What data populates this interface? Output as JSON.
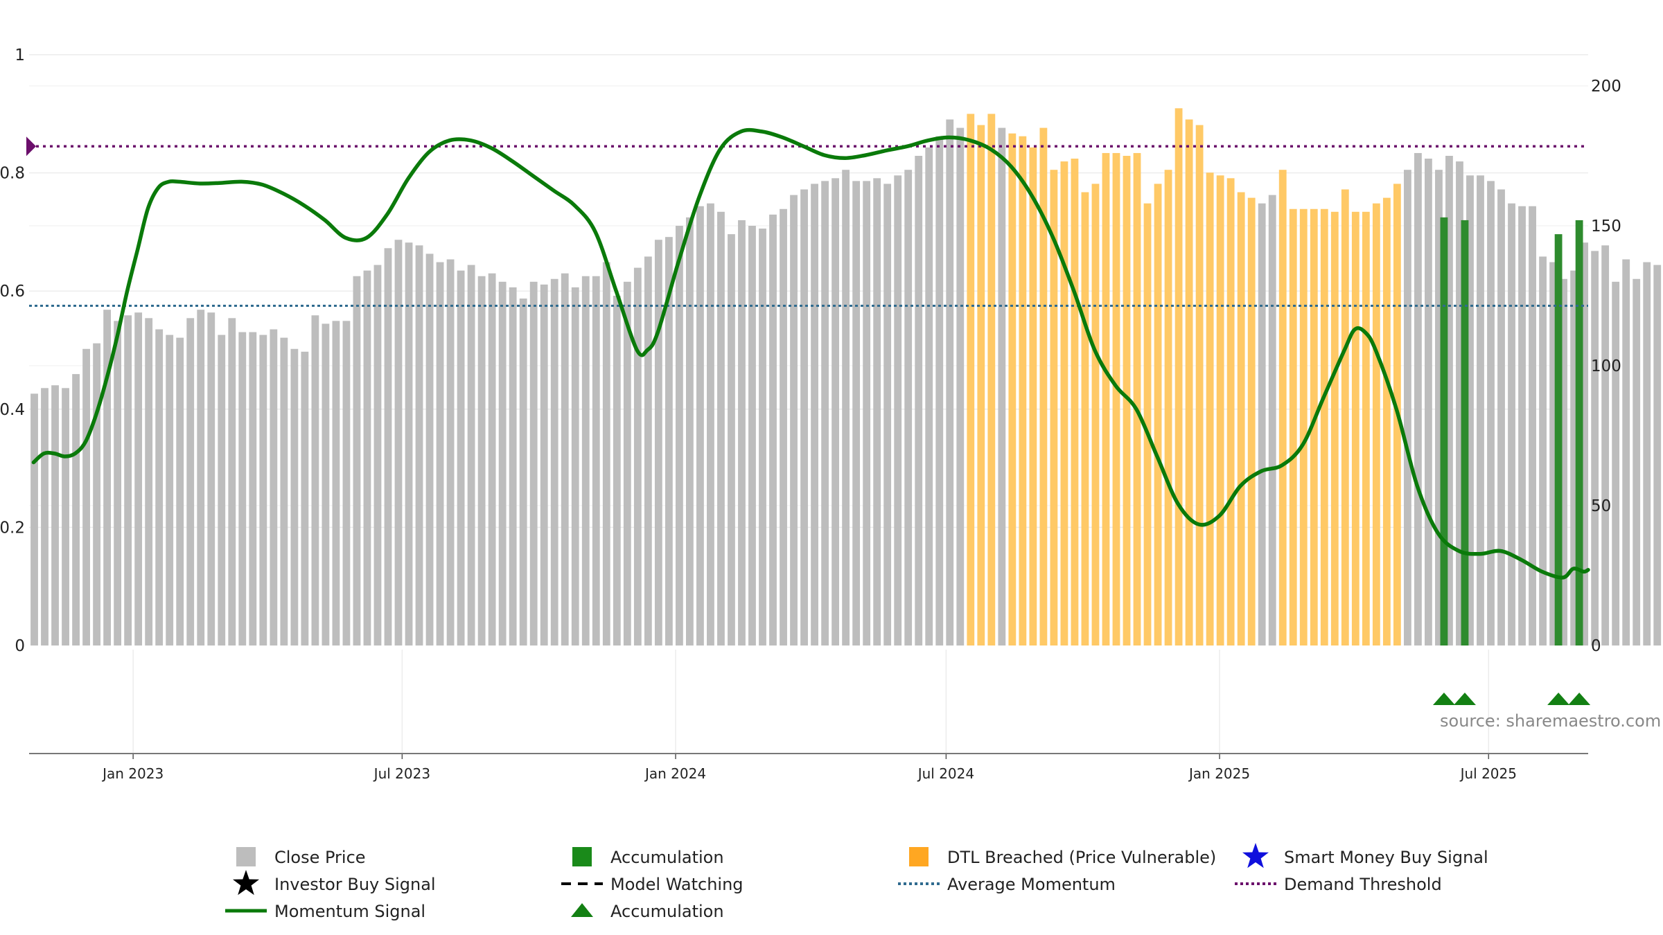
{
  "chart_data": {
    "type": "bar",
    "title": "",
    "source": "source: sharemaestro.com",
    "x_ticks": [
      "Jan 2023",
      "Jul 2023",
      "Jan 2024",
      "Jul 2024",
      "Jan 2025",
      "Jul 2025"
    ],
    "x_tick_dates": [
      "2023-01-01",
      "2023-07-01",
      "2024-01-01",
      "2024-07-01",
      "2025-01-01",
      "2025-07-01"
    ],
    "x_range": [
      "2022-10-23",
      "2025-09-06"
    ],
    "left_axis": {
      "ticks": [
        "0",
        "0.2",
        "0.4",
        "0.6",
        "0.8",
        "1"
      ],
      "range": [
        0,
        1
      ]
    },
    "right_axis": {
      "ticks": [
        "0",
        "50",
        "100",
        "150",
        "200"
      ],
      "range": [
        0,
        200
      ]
    },
    "grid": true,
    "legend_position": "bottom",
    "colors": {
      "close_price": "#bdbdbd",
      "dtl_breached": "#ffc966",
      "accumulation": "#2e8b2e",
      "momentum": "#0a7a0a",
      "average_momentum": "#2f6b8f",
      "demand_threshold": "#6b0f6b",
      "smart_money": "#1010dd"
    },
    "bar_start_date": "2022-10-23",
    "bar_interval_days": 7,
    "close_price": [
      90,
      92,
      93,
      92,
      97,
      106,
      108,
      120,
      116,
      118,
      119,
      117,
      113,
      111,
      110,
      117,
      120,
      119,
      111,
      117,
      112,
      112,
      111,
      113,
      110,
      106,
      105,
      118,
      115,
      116,
      116,
      132,
      134,
      136,
      142,
      145,
      144,
      143,
      140,
      137,
      138,
      134,
      136,
      132,
      133,
      130,
      128,
      124,
      130,
      129,
      131,
      133,
      128,
      132,
      132,
      137,
      125,
      130,
      135,
      139,
      145,
      146,
      150,
      153,
      157,
      158,
      155,
      147,
      152,
      150,
      149,
      154,
      156,
      161,
      163,
      165,
      166,
      167,
      170,
      166,
      166,
      167,
      165,
      168,
      170,
      175,
      178,
      182,
      188,
      185,
      190,
      186,
      190,
      185,
      183,
      182,
      178,
      185,
      170,
      173,
      174,
      162,
      165,
      176,
      176,
      175,
      176,
      158,
      165,
      170,
      192,
      188,
      186,
      169,
      168,
      167,
      162,
      160,
      158,
      161,
      170,
      156,
      156,
      156,
      156,
      155,
      163,
      155,
      155,
      158,
      160,
      165,
      170,
      176,
      174,
      170,
      175,
      173,
      168,
      168,
      166,
      163,
      158,
      157,
      157,
      139,
      137,
      131,
      134,
      144,
      141,
      143,
      130,
      138,
      131,
      137,
      136,
      136,
      145,
      145,
      150,
      150,
      140,
      141,
      142,
      143,
      138,
      138,
      136,
      139,
      141,
      146,
      151,
      148
    ],
    "dtl_breached_range": [
      77,
      131
    ],
    "dtl_breached_mask": [
      0,
      0,
      0,
      0,
      0,
      0,
      0,
      0,
      0,
      0,
      0,
      0,
      0,
      1,
      1,
      1,
      0,
      1,
      1,
      1,
      1,
      1,
      1,
      1,
      1,
      1,
      1,
      1,
      1,
      1,
      1,
      1,
      1,
      1,
      1,
      1,
      1,
      1,
      1,
      1,
      1,
      0,
      0,
      1,
      1,
      1,
      1,
      1,
      1,
      1,
      1,
      1,
      1,
      1,
      1
    ],
    "accumulation_bars": [
      {
        "date": "2025-06-01",
        "value": 153
      },
      {
        "date": "2025-06-15",
        "value": 152
      },
      {
        "date": "2025-08-17",
        "value": 147
      },
      {
        "date": "2025-08-31",
        "value": 152
      }
    ],
    "accumulation_markers": [
      "2025-06-01",
      "2025-06-15",
      "2025-08-17",
      "2025-08-31"
    ],
    "average_momentum": 0.575,
    "demand_threshold": 0.845,
    "momentum": [
      [
        "2022-10-26",
        0.31
      ],
      [
        "2022-11-02",
        0.325
      ],
      [
        "2022-11-09",
        0.325
      ],
      [
        "2022-11-16",
        0.32
      ],
      [
        "2022-11-23",
        0.325
      ],
      [
        "2022-11-30",
        0.345
      ],
      [
        "2022-12-07",
        0.39
      ],
      [
        "2022-12-14",
        0.45
      ],
      [
        "2022-12-21",
        0.52
      ],
      [
        "2022-12-28",
        0.6
      ],
      [
        "2023-01-04",
        0.67
      ],
      [
        "2023-01-11",
        0.74
      ],
      [
        "2023-01-18",
        0.775
      ],
      [
        "2023-01-25",
        0.785
      ],
      [
        "2023-02-01",
        0.785
      ],
      [
        "2023-02-15",
        0.782
      ],
      [
        "2023-03-01",
        0.783
      ],
      [
        "2023-03-15",
        0.785
      ],
      [
        "2023-03-29",
        0.78
      ],
      [
        "2023-04-12",
        0.765
      ],
      [
        "2023-04-26",
        0.745
      ],
      [
        "2023-05-10",
        0.72
      ],
      [
        "2023-05-24",
        0.69
      ],
      [
        "2023-06-07",
        0.69
      ],
      [
        "2023-06-21",
        0.73
      ],
      [
        "2023-07-05",
        0.79
      ],
      [
        "2023-07-19",
        0.835
      ],
      [
        "2023-08-02",
        0.855
      ],
      [
        "2023-08-16",
        0.855
      ],
      [
        "2023-08-30",
        0.842
      ],
      [
        "2023-09-13",
        0.82
      ],
      [
        "2023-09-27",
        0.795
      ],
      [
        "2023-10-11",
        0.77
      ],
      [
        "2023-10-25",
        0.745
      ],
      [
        "2023-11-08",
        0.7
      ],
      [
        "2023-11-22",
        0.6
      ],
      [
        "2023-12-06",
        0.5
      ],
      [
        "2023-12-13",
        0.5
      ],
      [
        "2023-12-20",
        0.53
      ],
      [
        "2024-01-03",
        0.65
      ],
      [
        "2024-01-17",
        0.76
      ],
      [
        "2024-01-31",
        0.84
      ],
      [
        "2024-02-14",
        0.87
      ],
      [
        "2024-02-28",
        0.87
      ],
      [
        "2024-03-13",
        0.86
      ],
      [
        "2024-03-27",
        0.845
      ],
      [
        "2024-04-10",
        0.83
      ],
      [
        "2024-04-24",
        0.825
      ],
      [
        "2024-05-08",
        0.83
      ],
      [
        "2024-05-22",
        0.838
      ],
      [
        "2024-06-05",
        0.845
      ],
      [
        "2024-06-19",
        0.855
      ],
      [
        "2024-07-03",
        0.86
      ],
      [
        "2024-07-17",
        0.855
      ],
      [
        "2024-07-31",
        0.84
      ],
      [
        "2024-08-14",
        0.81
      ],
      [
        "2024-08-28",
        0.76
      ],
      [
        "2024-09-11",
        0.69
      ],
      [
        "2024-09-25",
        0.6
      ],
      [
        "2024-10-09",
        0.5
      ],
      [
        "2024-10-23",
        0.44
      ],
      [
        "2024-11-06",
        0.4
      ],
      [
        "2024-11-20",
        0.32
      ],
      [
        "2024-12-04",
        0.24
      ],
      [
        "2024-12-18",
        0.205
      ],
      [
        "2025-01-01",
        0.22
      ],
      [
        "2025-01-15",
        0.27
      ],
      [
        "2025-01-29",
        0.295
      ],
      [
        "2025-02-12",
        0.305
      ],
      [
        "2025-02-26",
        0.34
      ],
      [
        "2025-03-12",
        0.42
      ],
      [
        "2025-03-26",
        0.5
      ],
      [
        "2025-04-02",
        0.535
      ],
      [
        "2025-04-09",
        0.53
      ],
      [
        "2025-04-16",
        0.5
      ],
      [
        "2025-04-30",
        0.4
      ],
      [
        "2025-05-14",
        0.27
      ],
      [
        "2025-05-28",
        0.19
      ],
      [
        "2025-06-11",
        0.16
      ],
      [
        "2025-06-25",
        0.155
      ],
      [
        "2025-07-09",
        0.16
      ],
      [
        "2025-07-23",
        0.145
      ],
      [
        "2025-08-06",
        0.125
      ],
      [
        "2025-08-20",
        0.115
      ],
      [
        "2025-08-27",
        0.13
      ],
      [
        "2025-09-03",
        0.125
      ],
      [
        "2025-09-06",
        0.128
      ]
    ],
    "legend": [
      {
        "label": "Close Price",
        "type": "square",
        "color": "#bdbdbd",
        "icon": "square-icon"
      },
      {
        "label": "Accumulation",
        "type": "square",
        "color": "#1a8a1a",
        "icon": "square-icon"
      },
      {
        "label": "DTL Breached (Price Vulnerable)",
        "type": "square",
        "color": "#ffa722",
        "icon": "square-icon"
      },
      {
        "label": "Smart Money Buy Signal",
        "type": "star",
        "color": "#1010dd",
        "icon": "star-icon"
      },
      {
        "label": "Investor Buy Signal",
        "type": "star",
        "color": "#000000",
        "icon": "star-icon"
      },
      {
        "label": "Model Watching",
        "type": "dash",
        "color": "#000000",
        "icon": "dashed-line-icon"
      },
      {
        "label": "Average Momentum",
        "type": "dot",
        "color": "#2f6b8f",
        "icon": "dotted-line-icon"
      },
      {
        "label": "Demand Threshold",
        "type": "dot",
        "color": "#6b0f6b",
        "icon": "dotted-line-icon"
      },
      {
        "label": "Momentum Signal",
        "type": "line",
        "color": "#0a7a0a",
        "icon": "line-icon"
      },
      {
        "label": "Accumulation",
        "type": "triangle",
        "color": "#138013",
        "icon": "triangle-icon"
      }
    ]
  }
}
